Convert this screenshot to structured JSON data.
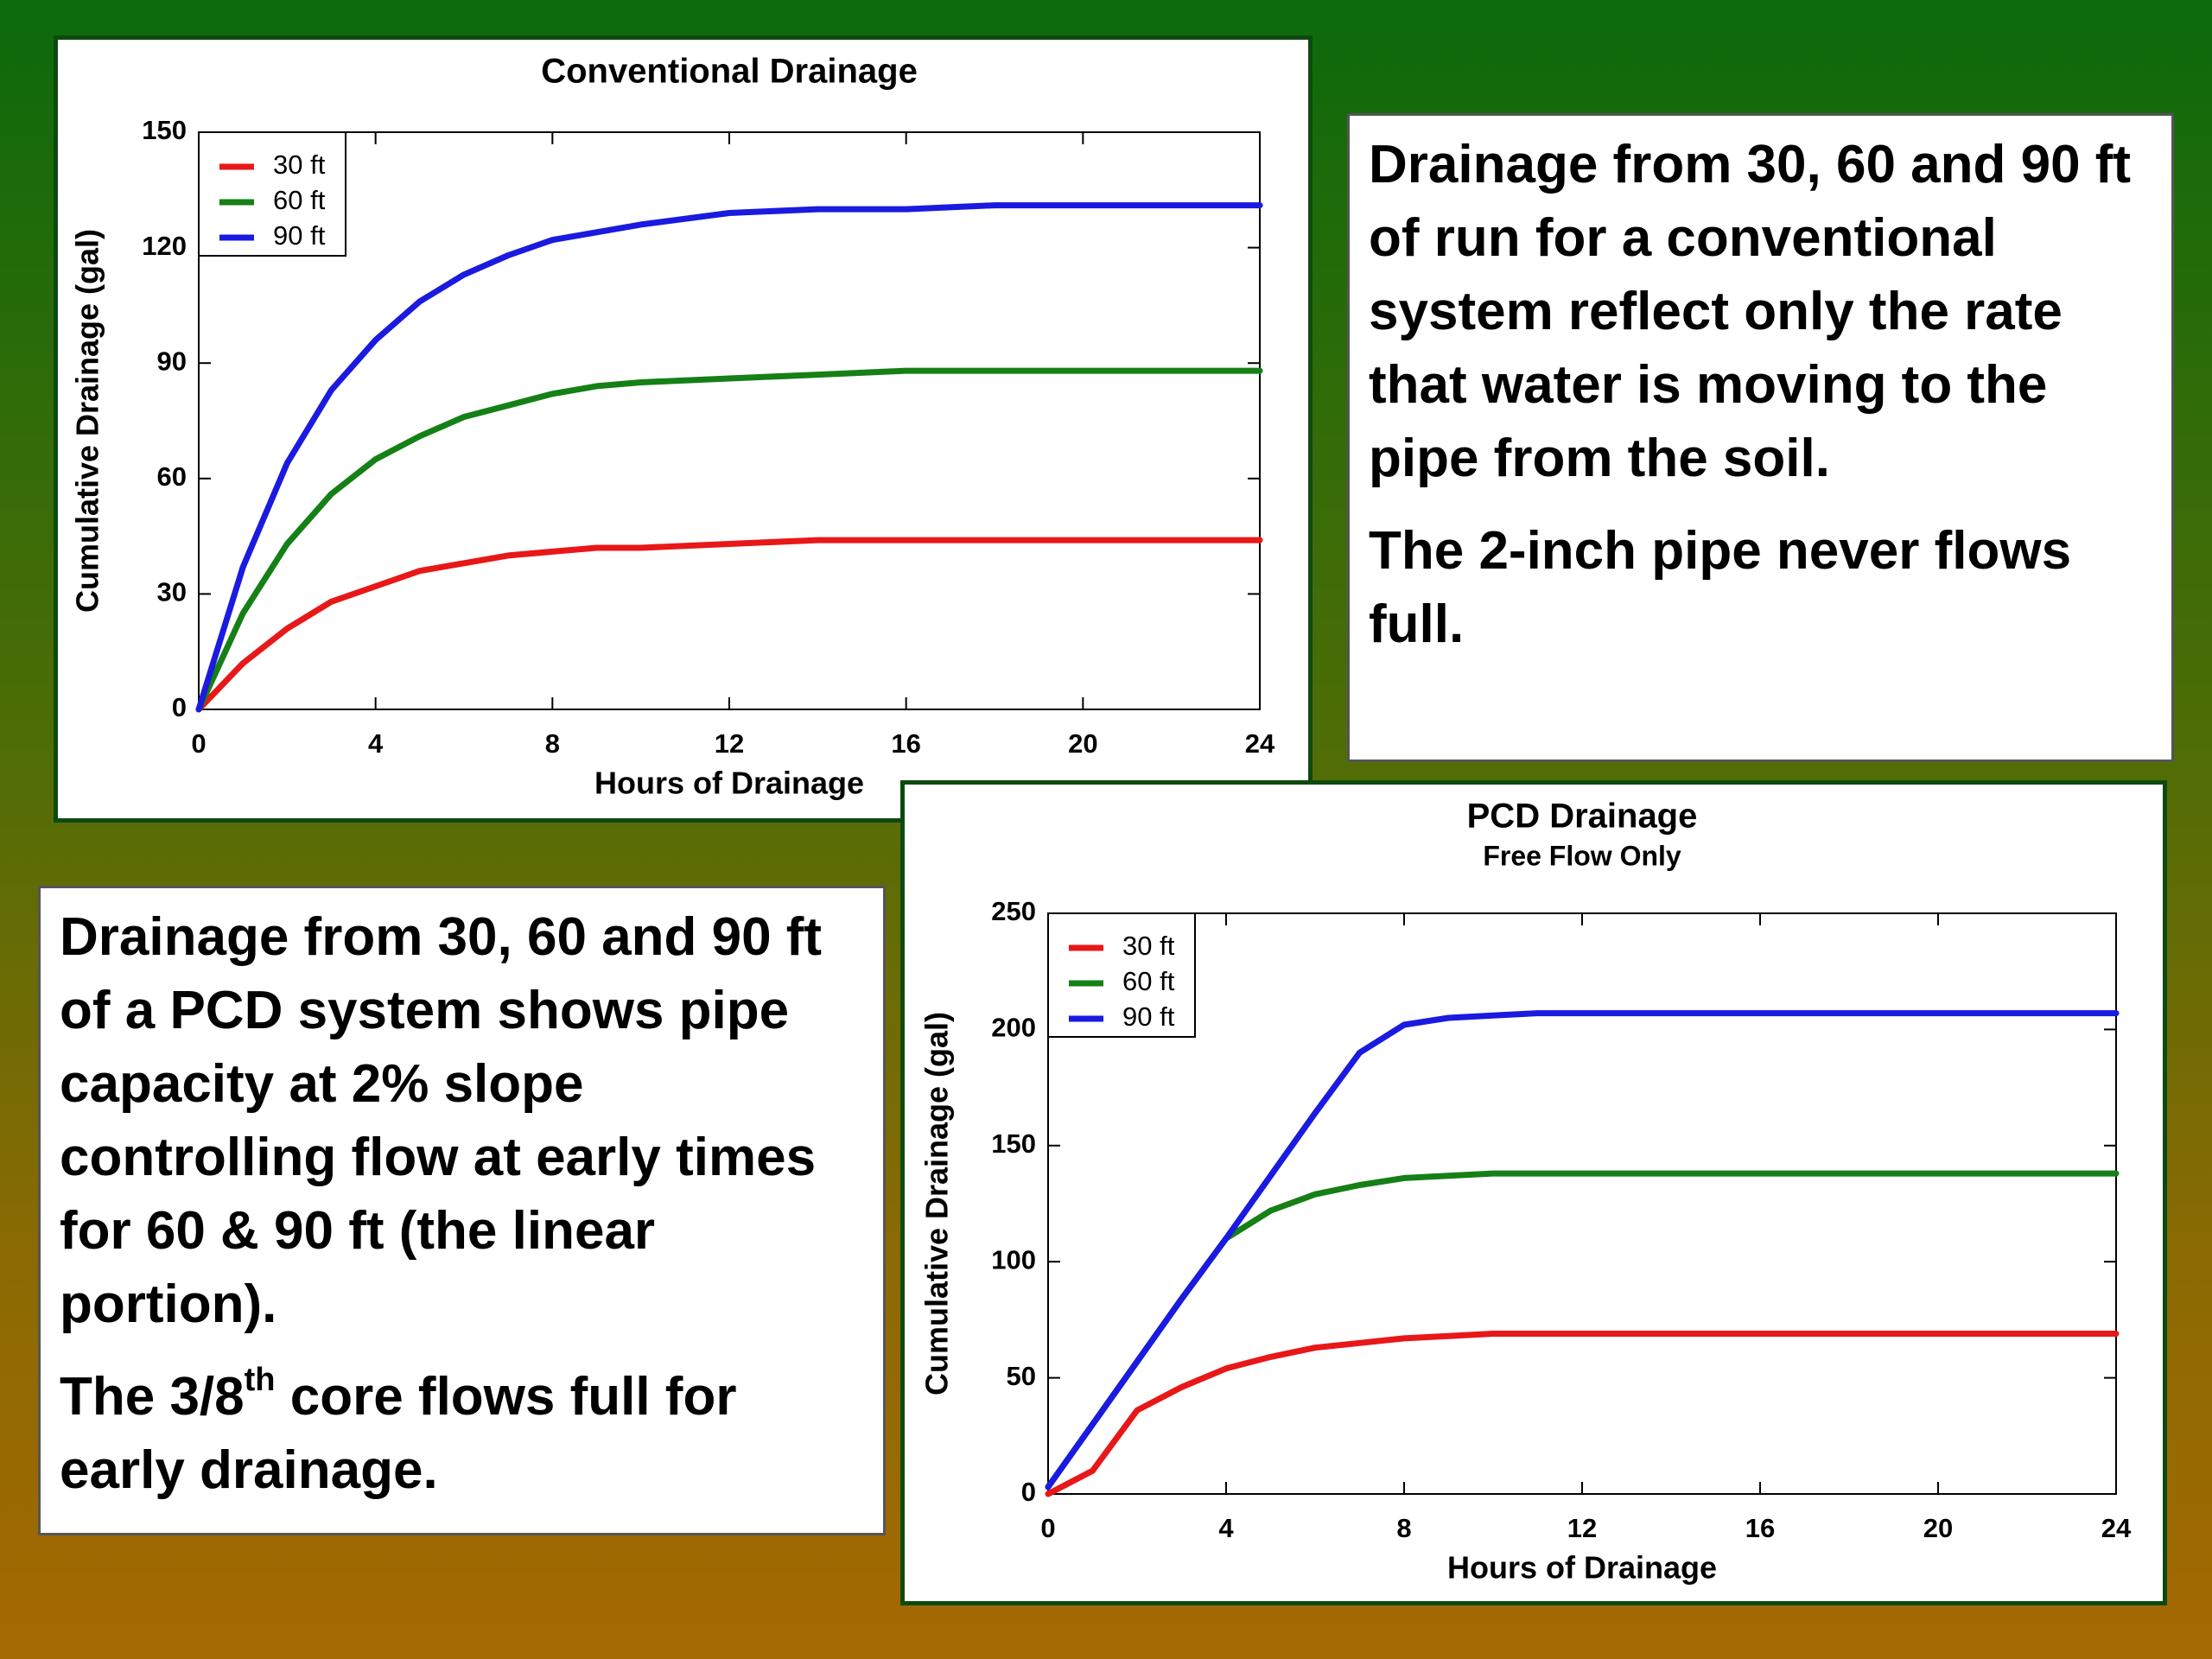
{
  "chart_data": [
    {
      "type": "line",
      "title": "Conventional Drainage",
      "xlabel": "Hours of Drainage",
      "ylabel": "Cumulative Drainage (gal)",
      "x": [
        0,
        1,
        2,
        3,
        4,
        5,
        6,
        7,
        8,
        9,
        10,
        12,
        14,
        16,
        18,
        20,
        24
      ],
      "series": [
        {
          "name": "30 ft",
          "color": "#e81818",
          "values": [
            0,
            12,
            21,
            28,
            32,
            36,
            38,
            40,
            41,
            42,
            42,
            43,
            44,
            44,
            44,
            44,
            44
          ]
        },
        {
          "name": "60 ft",
          "color": "#158015",
          "values": [
            0,
            25,
            43,
            56,
            65,
            71,
            76,
            79,
            82,
            84,
            85,
            86,
            87,
            88,
            88,
            88,
            88
          ]
        },
        {
          "name": "90 ft",
          "color": "#1a1ae0",
          "values": [
            0,
            37,
            64,
            83,
            96,
            106,
            113,
            118,
            122,
            124,
            126,
            129,
            130,
            130,
            131,
            131,
            131
          ]
        }
      ],
      "xlim": [
        0,
        24
      ],
      "xticks": [
        0,
        4,
        8,
        12,
        16,
        20,
        24
      ],
      "ylim": [
        0,
        150
      ],
      "yticks": [
        0,
        30,
        60,
        90,
        120,
        150
      ],
      "grid": false,
      "legend": "upper left"
    },
    {
      "type": "line",
      "title": "PCD Drainage",
      "subtitle": "Free Flow Only",
      "xlabel": "Hours of Drainage",
      "ylabel": "Cumulative Drainage (gal)",
      "x": [
        0,
        1,
        2,
        3,
        4,
        5,
        6,
        7,
        8,
        9,
        10,
        11,
        12,
        16,
        20,
        24
      ],
      "series": [
        {
          "name": "30 ft",
          "color": "#e81818",
          "values": [
            0,
            10,
            36,
            46,
            54,
            59,
            63,
            65,
            67,
            68,
            69,
            69,
            69,
            69,
            69,
            69
          ]
        },
        {
          "name": "60 ft",
          "color": "#158015",
          "values": [
            3,
            30,
            57,
            84,
            110,
            122,
            129,
            133,
            136,
            137,
            138,
            138,
            138,
            138,
            138,
            138
          ]
        },
        {
          "name": "90 ft",
          "color": "#1a1ae0",
          "values": [
            3,
            30,
            57,
            84,
            110,
            137,
            164,
            190,
            202,
            205,
            206,
            207,
            207,
            207,
            207,
            207
          ]
        }
      ],
      "xlim": [
        0,
        24
      ],
      "xticks": [
        0,
        4,
        8,
        12,
        16,
        20,
        24
      ],
      "ylim": [
        0,
        250
      ],
      "yticks": [
        0,
        50,
        100,
        150,
        200,
        250
      ],
      "grid": false,
      "legend": "upper left"
    }
  ],
  "text_boxes": [
    {
      "paragraphs": [
        "Drainage from 30, 60 and 90 ft of run for a conventional system reflect only the rate that water is moving to the pipe from the soil.",
        "The 2-inch pipe never flows full."
      ]
    },
    {
      "paragraphs": [
        "Drainage from 30, 60 and 90 ft of a PCD system shows pipe capacity at 2% slope controlling flow at early times for 60 & 90 ft (the linear portion).",
        [
          "The 3/8",
          "th",
          " core flows full for early drainage."
        ]
      ]
    }
  ]
}
